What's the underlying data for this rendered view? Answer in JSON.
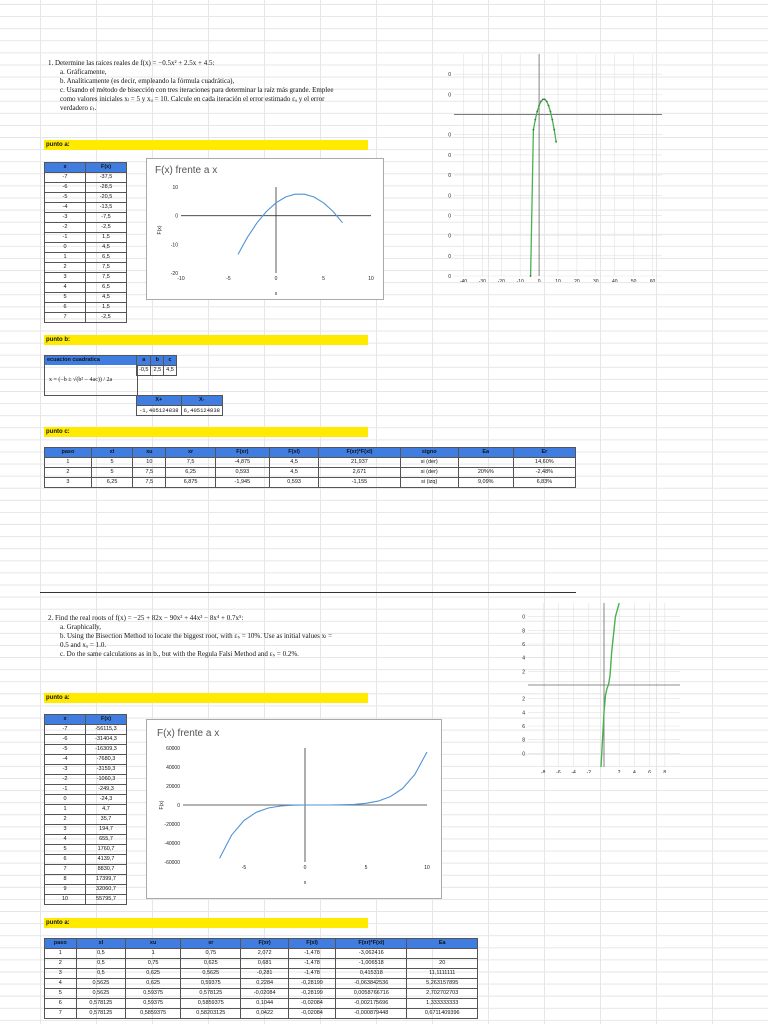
{
  "problem1": {
    "lines": [
      "1.  Determine las raíces reales de f(x) = −0.5x² + 2.5x + 4.5:",
      "a.  Gráficamente,",
      "b.  Analíticamente (es decir, empleando la fórmula cuadrática),",
      "c.  Usando el método de bisección con tres iteraciones para determinar la raíz más grande. Emplee",
      "como valores iniciales xₗ = 5 y xᵤ = 10. Calcule en cada iteración el error estimado εₐ y el error",
      "verdadero εₜ."
    ],
    "label_a": "punto a:",
    "label_b": "punto b:",
    "label_c": "punto c:",
    "xf_headers": [
      "x",
      "F(x)"
    ],
    "xf_rows": [
      [
        "-7",
        "-37,5"
      ],
      [
        "-6",
        "-28,5"
      ],
      [
        "-5",
        "-20,5"
      ],
      [
        "-4",
        "-13,5"
      ],
      [
        "-3",
        "-7,5"
      ],
      [
        "-2",
        "-2,5"
      ],
      [
        "-1",
        "1,5"
      ],
      [
        "0",
        "4,5"
      ],
      [
        "1",
        "6,5"
      ],
      [
        "2",
        "7,5"
      ],
      [
        "3",
        "7,5"
      ],
      [
        "4",
        "6,5"
      ],
      [
        "5",
        "4,5"
      ],
      [
        "6",
        "1,5"
      ],
      [
        "7",
        "-2,5"
      ]
    ],
    "quad": {
      "title": "ecuacion cuadratica",
      "formula": "x = (−b ± √(b² − 4ac)) / 2a",
      "headers": [
        "a",
        "b",
        "c"
      ],
      "values": [
        "-0,5",
        "2,5",
        "4,5"
      ],
      "root_headers": [
        "X+",
        "X-"
      ],
      "roots": [
        "-1,405124838",
        "6,405124838"
      ]
    },
    "bis_headers": [
      "paso",
      "xl",
      "xu",
      "xr",
      "F(xr)",
      "F(xl)",
      "F(xr)*F(xl)",
      "signo",
      "Ea",
      "Er"
    ],
    "bis_rows": [
      [
        "1",
        "5",
        "10",
        "7,5",
        "-4,875",
        "4,5",
        "21,937",
        "si (der)",
        "",
        "14,60%"
      ],
      [
        "2",
        "5",
        "7,5",
        "6,25",
        "0,593",
        "4,5",
        "2,671",
        "si (der)",
        "20%%",
        "-2,48%"
      ],
      [
        "3",
        "6,25",
        "7,5",
        "6,875",
        "-1,945",
        "0,593",
        "-1,155",
        "si (izq)",
        "9,09%",
        "6,83%"
      ]
    ]
  },
  "problem2": {
    "lines": [
      "2.  Find the real roots of f(x) = −25 + 82x − 90x² + 44x³ − 8x⁴ + 0.7x⁵:",
      "a.  Graphically,",
      "b.  Using the Bisection Method to locate the biggest root, with εₛ = 10%. Use as initial values xₗ =",
      "0.5 and xᵤ = 1.0.",
      "c.  Do the same calculations as in b., but with the Regula Falsi Method and εₛ = 0.2%."
    ],
    "label_a": "punto a:",
    "label_b": "punto a:",
    "xf_headers": [
      "x",
      "F(x)"
    ],
    "xf_rows": [
      [
        "-7",
        "-56115,3"
      ],
      [
        "-6",
        "-31404,3"
      ],
      [
        "-5",
        "-16309,3"
      ],
      [
        "-4",
        "-7680,3"
      ],
      [
        "-3",
        "-3159,3"
      ],
      [
        "-2",
        "-1060,3"
      ],
      [
        "-1",
        "-249,3"
      ],
      [
        "0",
        "-24,3"
      ],
      [
        "1",
        "4,7"
      ],
      [
        "2",
        "35,7"
      ],
      [
        "3",
        "194,7"
      ],
      [
        "4",
        "655,7"
      ],
      [
        "5",
        "1760,7"
      ],
      [
        "6",
        "4139,7"
      ],
      [
        "7",
        "8830,7"
      ],
      [
        "8",
        "17399,7"
      ],
      [
        "9",
        "32060,7"
      ],
      [
        "10",
        "55795,7"
      ]
    ],
    "bis_headers": [
      "paso",
      "xl",
      "xu",
      "xr",
      "F(xr)",
      "F(xl)",
      "F(xr)*F(xl)",
      "Ea"
    ],
    "bis_rows": [
      [
        "1",
        "0,5",
        "1",
        "0,75",
        "2,072",
        "-1,478",
        "-3,062416",
        ""
      ],
      [
        "2",
        "0,5",
        "0,75",
        "0,625",
        "0,681",
        "-1,478",
        "-1,006518",
        "20"
      ],
      [
        "3",
        "0,5",
        "0,625",
        "0,5625",
        "-0,281",
        "-1,478",
        "0,415318",
        "11,1111111"
      ],
      [
        "4",
        "0,5625",
        "0,625",
        "0,59375",
        "0,2284",
        "-0,28199",
        "-0,063842536",
        "5,263157895"
      ],
      [
        "5",
        "0,5625",
        "0,59375",
        "0,578125",
        "-0,02084",
        "-0,28199",
        "0,0058766716",
        "2,702702703"
      ],
      [
        "6",
        "0,578125",
        "0,59375",
        "0,5859375",
        "0,1044",
        "-0,02084",
        "-0,002175696",
        "1,333333333"
      ],
      [
        "7",
        "0,578125",
        "0,5859375",
        "0,58203125",
        "0,0422",
        "-0,02084",
        "-0,000879448",
        "0,6711409396"
      ]
    ]
  },
  "chart_data": [
    {
      "type": "line",
      "title": "F(x) frente a x",
      "xlabel": "x",
      "ylabel": "F(x)",
      "xlim": [
        -10,
        10
      ],
      "ylim": [
        -20,
        10
      ],
      "xticks": [
        -10,
        -5,
        0,
        5,
        10
      ],
      "yticks": [
        10,
        0,
        -10,
        -20
      ],
      "x": [
        -4,
        -3,
        -2,
        -1,
        0,
        1,
        2,
        3,
        4,
        5,
        6,
        7
      ],
      "y": [
        -13.5,
        -7.5,
        -2.5,
        1.5,
        4.5,
        6.5,
        7.5,
        7.5,
        6.5,
        4.5,
        1.5,
        -2.5
      ],
      "color": "#4f94d4"
    },
    {
      "type": "line",
      "title": "F(x) frente a x",
      "xlabel": "x",
      "ylabel": "F(x)",
      "xlim": [
        -10,
        10
      ],
      "ylim": [
        -60000,
        60000
      ],
      "xticks": [
        -5,
        0,
        5,
        10
      ],
      "yticks": [
        60000,
        40000,
        20000,
        0,
        -20000,
        -40000,
        -60000
      ],
      "x": [
        -7,
        -6,
        -5,
        -4,
        -3,
        -2,
        -1,
        0,
        1,
        2,
        3,
        4,
        5,
        6,
        7,
        8,
        9,
        10
      ],
      "y": [
        -56115.3,
        -31404.3,
        -16309.3,
        -7680.3,
        -3159.3,
        -1060.3,
        -249.3,
        -24.3,
        4.7,
        35.7,
        194.7,
        655.7,
        1760.7,
        4139.7,
        8830.7,
        17399.7,
        32060.7,
        55795.7
      ],
      "color": "#4f94d4"
    },
    {
      "type": "line",
      "title": "",
      "xlim": [
        -45,
        65
      ],
      "ylim": [
        -80,
        30
      ],
      "xticks": [
        -40,
        -30,
        -20,
        -10,
        0,
        10,
        20,
        30,
        40,
        50,
        60
      ],
      "yticks": [
        20,
        10,
        -10,
        -20,
        -30,
        -40,
        -50,
        -60,
        -70,
        -80
      ],
      "x": [
        -4.5,
        -3,
        -2,
        -1,
        0,
        1,
        2,
        3,
        4,
        5,
        6,
        7,
        8,
        9
      ],
      "y": [
        -80,
        -7.5,
        -2.5,
        1.5,
        4.5,
        6.5,
        7.5,
        7.5,
        6.5,
        4.5,
        1.5,
        -2.5,
        -7.5,
        -13.5
      ],
      "color": "#4caf50"
    },
    {
      "type": "line",
      "title": "",
      "xlim": [
        -10,
        10
      ],
      "ylim": [
        -12,
        12
      ],
      "xticks": [
        -8,
        -6,
        -4,
        -2,
        2,
        4,
        6,
        8
      ],
      "yticks": [
        10,
        8,
        6,
        4,
        2,
        -2,
        -4,
        -6,
        -8,
        -10
      ],
      "x": [
        -0.4,
        -0.2,
        0,
        0.2,
        0.4,
        0.6,
        0.8,
        1.0,
        1.5,
        2
      ],
      "y": [
        -12,
        -8,
        -4,
        -1.5,
        -0.5,
        0.1,
        1.5,
        4.7,
        10,
        12
      ],
      "color": "#4caf50"
    }
  ]
}
